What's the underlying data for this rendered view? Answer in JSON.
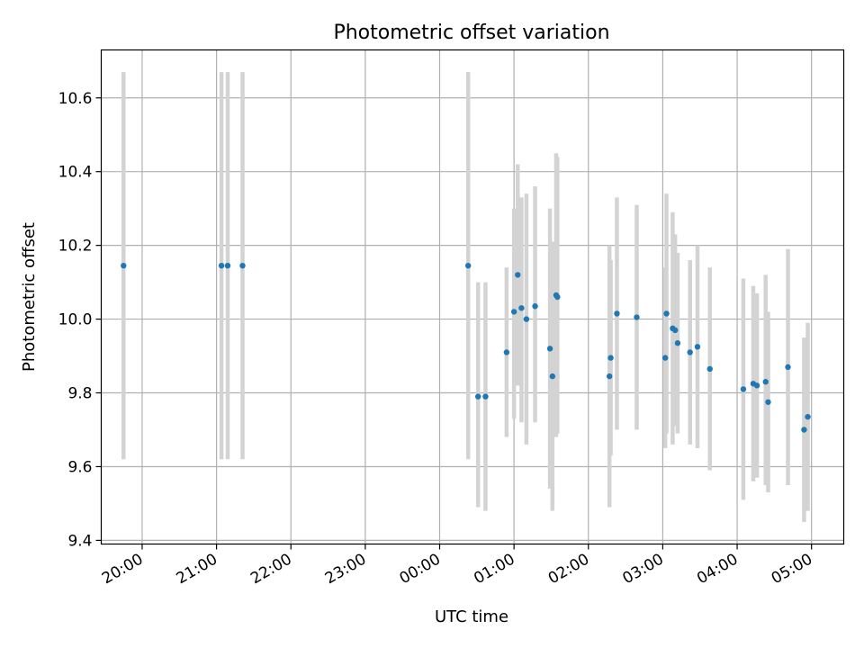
{
  "chart_data": {
    "type": "scatter",
    "title": "Photometric offset variation",
    "xlabel": "UTC time",
    "ylabel": "Photometric offset",
    "x_axis_type": "time",
    "xlim": [
      "19:27",
      "05:26"
    ],
    "ylim": [
      9.39,
      10.73
    ],
    "grid": true,
    "marker_color": "#1f77b4",
    "errorbar_color": "#d3d3d3",
    "x_ticks": [
      "20:00",
      "21:00",
      "22:00",
      "23:00",
      "00:00",
      "01:00",
      "02:00",
      "03:00",
      "04:00",
      "05:00"
    ],
    "y_ticks": [
      "9.4",
      "9.6",
      "9.8",
      "10.0",
      "10.2",
      "10.4",
      "10.6"
    ],
    "points": [
      {
        "time": "19:45",
        "y": 10.145,
        "err_low": 9.62,
        "err_high": 10.67
      },
      {
        "time": "21:04",
        "y": 10.145,
        "err_low": 9.62,
        "err_high": 10.67
      },
      {
        "time": "21:09",
        "y": 10.145,
        "err_low": 9.62,
        "err_high": 10.67
      },
      {
        "time": "21:21",
        "y": 10.145,
        "err_low": 9.62,
        "err_high": 10.67
      },
      {
        "time": "00:23",
        "y": 10.145,
        "err_low": 9.62,
        "err_high": 10.67
      },
      {
        "time": "00:31",
        "y": 9.79,
        "err_low": 9.49,
        "err_high": 10.1
      },
      {
        "time": "00:37",
        "y": 9.79,
        "err_low": 9.48,
        "err_high": 10.1
      },
      {
        "time": "00:54",
        "y": 9.91,
        "err_low": 9.68,
        "err_high": 10.14
      },
      {
        "time": "01:00",
        "y": 10.02,
        "err_low": 9.73,
        "err_high": 10.3
      },
      {
        "time": "01:03",
        "y": 10.12,
        "err_low": 9.82,
        "err_high": 10.42
      },
      {
        "time": "01:06",
        "y": 10.03,
        "err_low": 9.72,
        "err_high": 10.33
      },
      {
        "time": "01:10",
        "y": 10.0,
        "err_low": 9.66,
        "err_high": 10.34
      },
      {
        "time": "01:17",
        "y": 10.035,
        "err_low": 9.72,
        "err_high": 10.36
      },
      {
        "time": "01:29",
        "y": 9.92,
        "err_low": 9.54,
        "err_high": 10.3
      },
      {
        "time": "01:31",
        "y": 9.845,
        "err_low": 9.48,
        "err_high": 10.21
      },
      {
        "time": "01:34",
        "y": 10.065,
        "err_low": 9.68,
        "err_high": 10.45
      },
      {
        "time": "01:35",
        "y": 10.06,
        "err_low": 9.69,
        "err_high": 10.44
      },
      {
        "time": "02:17",
        "y": 9.845,
        "err_low": 9.49,
        "err_high": 10.2
      },
      {
        "time": "02:18",
        "y": 9.895,
        "err_low": 9.63,
        "err_high": 10.16
      },
      {
        "time": "02:23",
        "y": 10.015,
        "err_low": 9.7,
        "err_high": 10.33
      },
      {
        "time": "02:39",
        "y": 10.005,
        "err_low": 9.7,
        "err_high": 10.31
      },
      {
        "time": "03:02",
        "y": 9.895,
        "err_low": 9.65,
        "err_high": 10.14
      },
      {
        "time": "03:03",
        "y": 10.015,
        "err_low": 9.69,
        "err_high": 10.34
      },
      {
        "time": "03:08",
        "y": 9.975,
        "err_low": 9.66,
        "err_high": 10.29
      },
      {
        "time": "03:10",
        "y": 9.97,
        "err_low": 9.71,
        "err_high": 10.23
      },
      {
        "time": "03:12",
        "y": 9.935,
        "err_low": 9.69,
        "err_high": 10.18
      },
      {
        "time": "03:22",
        "y": 9.91,
        "err_low": 9.66,
        "err_high": 10.16
      },
      {
        "time": "03:28",
        "y": 9.925,
        "err_low": 9.65,
        "err_high": 10.2
      },
      {
        "time": "03:38",
        "y": 9.865,
        "err_low": 9.59,
        "err_high": 10.14
      },
      {
        "time": "04:05",
        "y": 9.81,
        "err_low": 9.51,
        "err_high": 10.11
      },
      {
        "time": "04:13",
        "y": 9.825,
        "err_low": 9.56,
        "err_high": 10.09
      },
      {
        "time": "04:16",
        "y": 9.82,
        "err_low": 9.57,
        "err_high": 10.07
      },
      {
        "time": "04:23",
        "y": 9.83,
        "err_low": 9.55,
        "err_high": 10.12
      },
      {
        "time": "04:25",
        "y": 9.775,
        "err_low": 9.53,
        "err_high": 10.02
      },
      {
        "time": "04:41",
        "y": 9.87,
        "err_low": 9.55,
        "err_high": 10.19
      },
      {
        "time": "04:54",
        "y": 9.7,
        "err_low": 9.45,
        "err_high": 9.95
      },
      {
        "time": "04:57",
        "y": 9.735,
        "err_low": 9.48,
        "err_high": 9.99
      }
    ]
  }
}
